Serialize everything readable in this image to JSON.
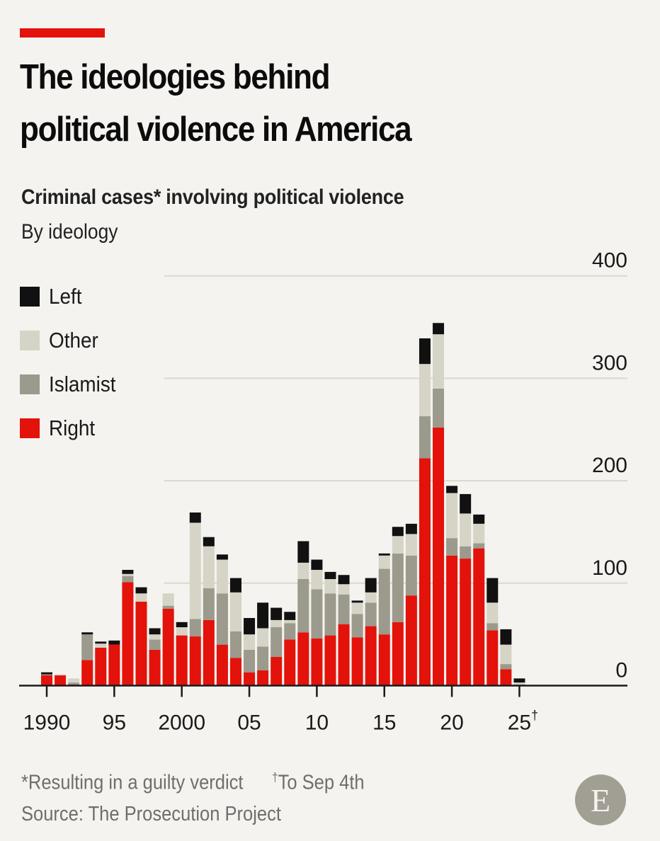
{
  "header": {
    "title_line1": "The ideologies behind",
    "title_line2": "political violence in America",
    "subtitle": "Criminal cases* involving political violence",
    "subsubtitle": "By ideology"
  },
  "legend": [
    {
      "label": "Left",
      "color": "#111111"
    },
    {
      "label": "Other",
      "color": "#d6d4c6"
    },
    {
      "label": "Islamist",
      "color": "#9b9a8c"
    },
    {
      "label": "Right",
      "color": "#e3120b"
    }
  ],
  "footer": {
    "note1": "*Resulting in a guilty verdict",
    "note2_symbol": "†",
    "note2": "To Sep 4th",
    "source": "Source: The Prosecution Project",
    "logo_letter": "E"
  },
  "chart_data": {
    "type": "bar",
    "stacked": true,
    "title": "Criminal cases* involving political violence",
    "subtitle": "By ideology",
    "xlabel": "",
    "ylabel": "",
    "ylim": [
      0,
      400
    ],
    "yticks": [
      0,
      100,
      200,
      300,
      400
    ],
    "y_axis_side": "right",
    "grid": true,
    "legend_position": "top-left",
    "xtick_labels": [
      {
        "year": 1990,
        "label": "1990"
      },
      {
        "year": 1995,
        "label": "95"
      },
      {
        "year": 2000,
        "label": "2000"
      },
      {
        "year": 2005,
        "label": "05"
      },
      {
        "year": 2010,
        "label": "10"
      },
      {
        "year": 2015,
        "label": "15"
      },
      {
        "year": 2020,
        "label": "20"
      },
      {
        "year": 2025,
        "label": "25†"
      }
    ],
    "categories": [
      1990,
      1991,
      1992,
      1993,
      1994,
      1995,
      1996,
      1997,
      1998,
      1999,
      2000,
      2001,
      2002,
      2003,
      2004,
      2005,
      2006,
      2007,
      2008,
      2009,
      2010,
      2011,
      2012,
      2013,
      2014,
      2015,
      2016,
      2017,
      2018,
      2019,
      2020,
      2021,
      2022,
      2023,
      2024,
      2025
    ],
    "series": [
      {
        "name": "Right",
        "color": "#e3120b",
        "values": [
          10,
          10,
          1,
          25,
          37,
          40,
          101,
          82,
          35,
          75,
          49,
          48,
          64,
          40,
          27,
          13,
          15,
          28,
          45,
          52,
          46,
          49,
          60,
          47,
          58,
          50,
          62,
          88,
          222,
          252,
          127,
          124,
          134,
          54,
          16,
          0
        ]
      },
      {
        "name": "Islamist",
        "color": "#9b9a8c",
        "values": [
          1,
          0,
          2,
          25,
          0,
          0,
          6,
          0,
          10,
          3,
          0,
          17,
          31,
          50,
          26,
          22,
          23,
          29,
          16,
          52,
          48,
          41,
          29,
          23,
          23,
          64,
          67,
          39,
          41,
          38,
          17,
          12,
          5,
          7,
          5,
          1
        ]
      },
      {
        "name": "Other",
        "color": "#d6d4c6",
        "values": [
          0,
          1,
          4,
          0,
          4,
          0,
          2,
          8,
          5,
          12,
          8,
          94,
          41,
          33,
          38,
          15,
          18,
          7,
          3,
          16,
          19,
          14,
          10,
          11,
          10,
          13,
          17,
          21,
          51,
          53,
          44,
          32,
          19,
          20,
          19,
          2
        ]
      },
      {
        "name": "Left",
        "color": "#111111",
        "values": [
          2,
          0,
          0,
          2,
          2,
          4,
          4,
          6,
          6,
          0,
          5,
          10,
          9,
          5,
          14,
          16,
          25,
          12,
          8,
          21,
          10,
          7,
          9,
          2,
          14,
          2,
          9,
          10,
          25,
          11,
          7,
          19,
          9,
          24,
          15,
          4
        ]
      }
    ]
  }
}
